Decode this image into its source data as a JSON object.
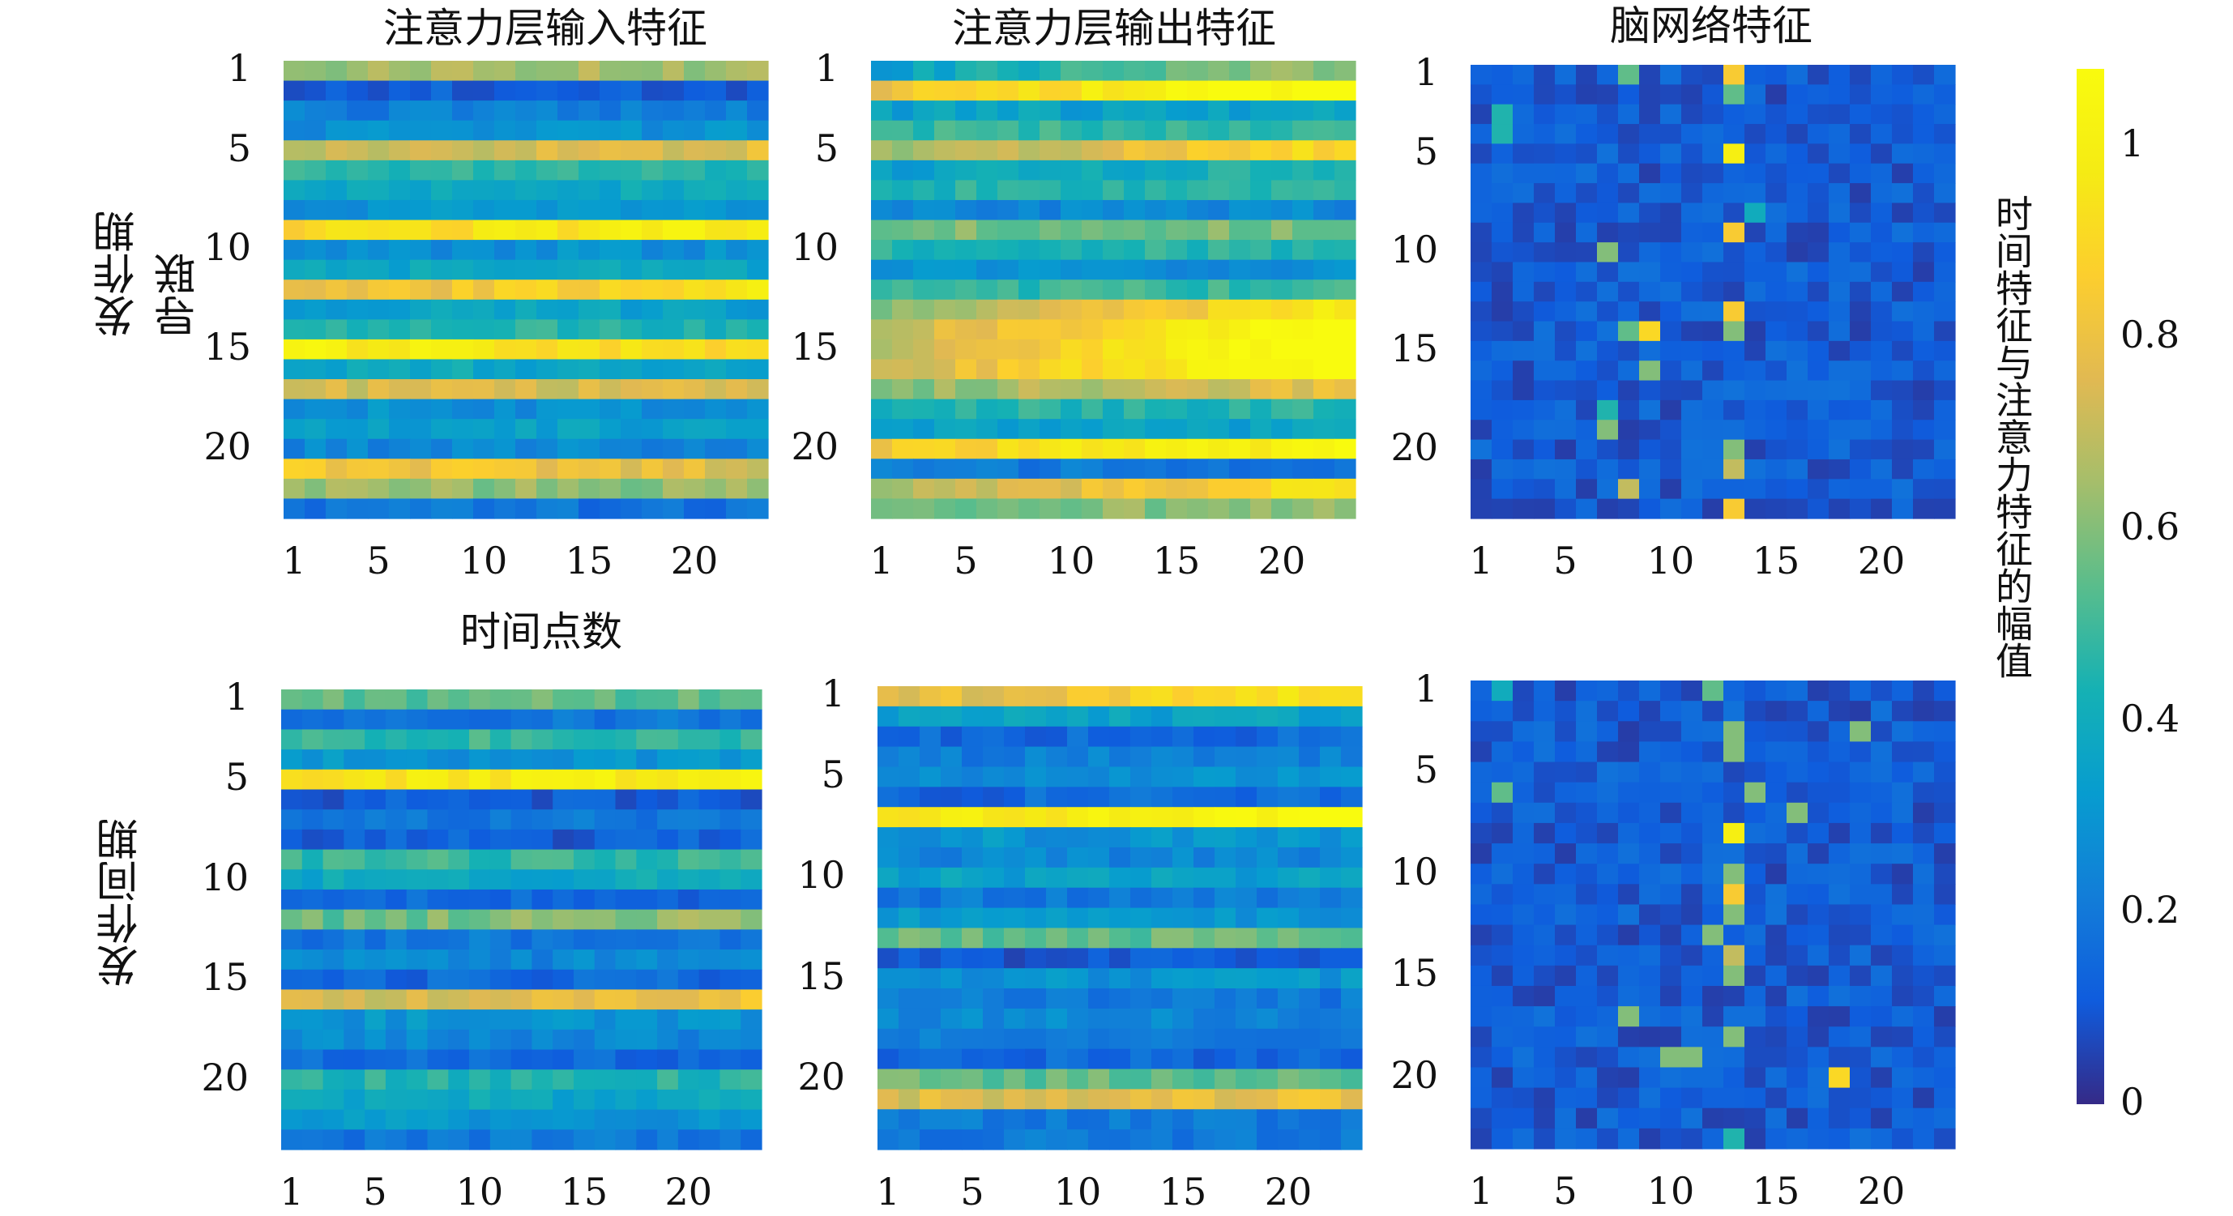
{
  "figure": {
    "shared_xlabel": "时间点数",
    "colorbar": {
      "label": "时间特征与注意力特征的幅值",
      "ticks": [
        "0",
        "0.2",
        "0.4",
        "0.6",
        "0.8",
        "1"
      ],
      "range": [
        0,
        1.08
      ]
    },
    "rows": [
      {
        "label": "发作期\n导联"
      },
      {
        "label": "发作间期"
      }
    ],
    "panels": [
      {
        "title": "注意力层输入特征"
      },
      {
        "title": "注意力层输出特征"
      },
      {
        "title": "脑网络特征"
      },
      {
        "title": ""
      },
      {
        "title": ""
      },
      {
        "title": ""
      }
    ],
    "y_ticks": [
      "1",
      "5",
      "10",
      "15",
      "20"
    ],
    "x_ticks": [
      "1",
      "5",
      "10",
      "15",
      "20"
    ]
  },
  "chart_data": [
    {
      "type": "heatmap",
      "title": "注意力层输入特征",
      "ylabel": "发作期 导联",
      "xlabel": "",
      "rows": 23,
      "cols": 23,
      "clim": [
        0,
        1.08
      ],
      "row_profile": [
        0.65,
        0.12,
        0.22,
        0.28,
        0.72,
        0.45,
        0.38,
        0.3,
        0.9,
        0.28,
        0.38,
        0.75,
        0.35,
        0.45,
        1.0,
        0.38,
        0.72,
        0.28,
        0.35,
        0.25,
        0.85,
        0.62,
        0.18
      ],
      "trend": [
        0,
        0,
        0,
        0,
        0.05,
        0,
        0,
        0,
        0.1,
        0,
        0,
        0.2,
        0,
        0,
        -0.1,
        0,
        0.05,
        0,
        0,
        0,
        -0.1,
        0,
        0
      ]
    },
    {
      "type": "heatmap",
      "title": "注意力层输出特征",
      "xlabel": "",
      "ylabel": "",
      "rows": 23,
      "cols": 23,
      "clim": [
        0,
        1.08
      ],
      "row_profile": [
        0.35,
        0.82,
        0.35,
        0.48,
        0.62,
        0.35,
        0.45,
        0.25,
        0.58,
        0.45,
        0.28,
        0.48,
        0.62,
        0.7,
        0.68,
        0.72,
        0.6,
        0.45,
        0.35,
        0.85,
        0.2,
        0.65,
        0.55
      ],
      "trend": [
        0.3,
        0.3,
        0,
        0,
        0.3,
        0.1,
        0,
        0,
        0,
        0,
        0,
        0,
        0.35,
        0.4,
        0.45,
        0.4,
        0.2,
        0,
        0,
        0.2,
        0,
        0.3,
        0.1
      ]
    },
    {
      "type": "heatmap",
      "title": "脑网络特征",
      "xlabel": "",
      "ylabel": "",
      "rows": 23,
      "cols": 23,
      "clim": [
        0,
        1.08
      ],
      "pattern": "sparse",
      "hot_cells": [
        [
          1,
          13,
          0.85
        ],
        [
          2,
          13,
          0.55
        ],
        [
          5,
          13,
          1.0
        ],
        [
          9,
          13,
          0.85
        ],
        [
          13,
          13,
          0.85
        ],
        [
          14,
          9,
          0.9
        ],
        [
          14,
          13,
          0.6
        ],
        [
          16,
          9,
          0.6
        ],
        [
          23,
          13,
          0.85
        ],
        [
          20,
          13,
          0.6
        ],
        [
          21,
          13,
          0.7
        ],
        [
          19,
          7,
          0.6
        ],
        [
          14,
          8,
          0.55
        ],
        [
          4,
          2,
          0.45
        ],
        [
          3,
          2,
          0.45
        ],
        [
          8,
          14,
          0.4
        ],
        [
          1,
          8,
          0.55
        ],
        [
          18,
          7,
          0.45
        ],
        [
          22,
          8,
          0.7
        ],
        [
          10,
          7,
          0.6
        ]
      ]
    },
    {
      "type": "heatmap",
      "title": "",
      "ylabel": "发作间期",
      "xlabel": "时间点数",
      "rows": 23,
      "cols": 23,
      "clim": [
        0,
        1.08
      ],
      "row_profile": [
        0.55,
        0.2,
        0.48,
        0.3,
        0.95,
        0.12,
        0.2,
        0.12,
        0.48,
        0.38,
        0.15,
        0.55,
        0.2,
        0.25,
        0.15,
        0.72,
        0.3,
        0.25,
        0.15,
        0.45,
        0.38,
        0.3,
        0.2
      ],
      "trend": [
        0,
        0,
        0,
        0,
        0.05,
        0,
        0,
        0,
        0,
        0,
        0,
        0.1,
        0,
        0,
        0,
        0.1,
        0,
        0,
        0,
        0,
        0,
        0,
        0
      ]
    },
    {
      "type": "heatmap",
      "title": "",
      "xlabel": "",
      "ylabel": "",
      "rows": 23,
      "cols": 23,
      "clim": [
        0,
        1.08
      ],
      "row_profile": [
        0.75,
        0.35,
        0.15,
        0.22,
        0.28,
        0.15,
        0.95,
        0.3,
        0.25,
        0.35,
        0.2,
        0.3,
        0.55,
        0.1,
        0.3,
        0.2,
        0.25,
        0.2,
        0.15,
        0.55,
        0.75,
        0.2,
        0.2
      ],
      "trend": [
        0.2,
        0,
        0,
        0,
        0,
        0,
        0.1,
        0,
        0,
        0,
        0,
        0,
        0,
        0,
        0,
        0,
        0,
        0,
        0,
        0,
        0.05,
        0,
        0
      ]
    },
    {
      "type": "heatmap",
      "title": "",
      "xlabel": "",
      "ylabel": "",
      "rows": 23,
      "cols": 23,
      "clim": [
        0,
        1.08
      ],
      "pattern": "sparse",
      "hot_cells": [
        [
          1,
          2,
          0.4
        ],
        [
          1,
          12,
          0.55
        ],
        [
          3,
          13,
          0.6
        ],
        [
          4,
          13,
          0.6
        ],
        [
          6,
          2,
          0.55
        ],
        [
          7,
          16,
          0.6
        ],
        [
          8,
          13,
          1.0
        ],
        [
          10,
          13,
          0.6
        ],
        [
          11,
          13,
          0.85
        ],
        [
          12,
          13,
          0.6
        ],
        [
          13,
          12,
          0.6
        ],
        [
          14,
          13,
          0.7
        ],
        [
          15,
          13,
          0.6
        ],
        [
          17,
          8,
          0.6
        ],
        [
          18,
          13,
          0.6
        ],
        [
          19,
          10,
          0.6
        ],
        [
          19,
          11,
          0.6
        ],
        [
          20,
          18,
          0.9
        ],
        [
          23,
          13,
          0.45
        ],
        [
          3,
          19,
          0.6
        ],
        [
          6,
          14,
          0.6
        ]
      ]
    }
  ]
}
